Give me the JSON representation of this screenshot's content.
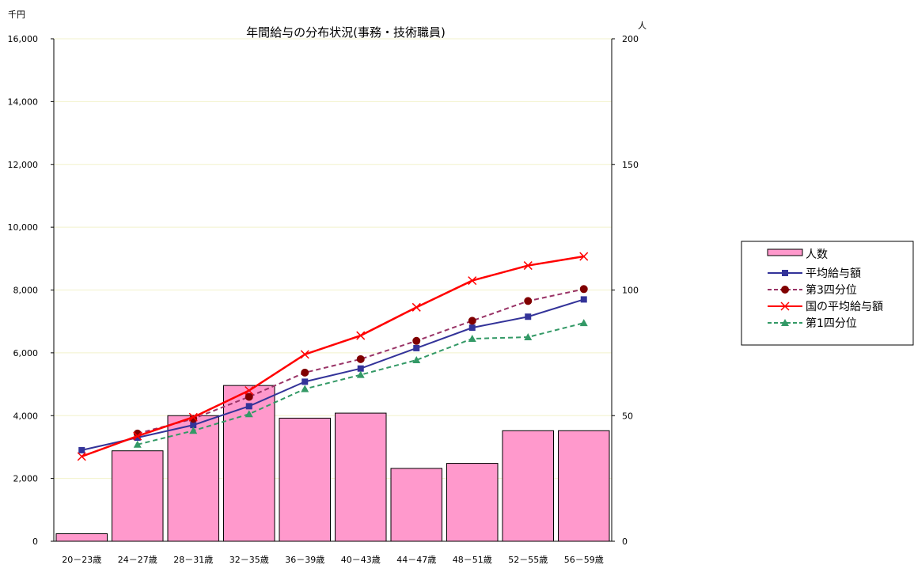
{
  "chart_data": {
    "type": "bar",
    "title": "年間給与の分布状況(事務・技術職員)",
    "y_left_unit": "千円",
    "y_right_unit": "人",
    "ylim_left": [
      0,
      16000
    ],
    "ylim_right": [
      0,
      200
    ],
    "yticks_left": [
      "0",
      "2,000",
      "4,000",
      "6,000",
      "8,000",
      "10,000",
      "12,000",
      "14,000",
      "16,000"
    ],
    "yticks_right": [
      "0",
      "50",
      "100",
      "150",
      "200"
    ],
    "categories": [
      "20－23歳",
      "24－27歳",
      "28－31歳",
      "32－35歳",
      "36－39歳",
      "40－43歳",
      "44－47歳",
      "48－51歳",
      "52－55歳",
      "56－59歳"
    ],
    "bars": {
      "name": "人数",
      "axis": "right",
      "color": "#ff99cc",
      "values": [
        3,
        36,
        50,
        62,
        49,
        51,
        29,
        31,
        44,
        44
      ]
    },
    "series": [
      {
        "name": "平均給与額",
        "axis": "left",
        "color": "#333399",
        "style": "solid",
        "marker": "square",
        "values": [
          2900,
          3300,
          3700,
          4300,
          5080,
          5500,
          6150,
          6800,
          7150,
          7700
        ]
      },
      {
        "name": "第3四分位",
        "axis": "left",
        "color": "#993366",
        "style": "dashed",
        "marker": "circle",
        "values": [
          null,
          3430,
          3900,
          4600,
          5370,
          5800,
          6380,
          7020,
          7650,
          8030
        ]
      },
      {
        "name": "国の平均給与額",
        "axis": "left",
        "color": "#ff0000",
        "style": "solid",
        "marker": "x",
        "values": [
          2700,
          3350,
          3950,
          4800,
          5950,
          6550,
          7450,
          8300,
          8780,
          9070
        ]
      },
      {
        "name": "第1四分位",
        "axis": "left",
        "color": "#339966",
        "style": "dashed",
        "marker": "triangle",
        "values": [
          null,
          3080,
          3520,
          4050,
          4850,
          5300,
          5770,
          6450,
          6500,
          6950
        ]
      }
    ],
    "grid": true,
    "legend_position": "right"
  }
}
